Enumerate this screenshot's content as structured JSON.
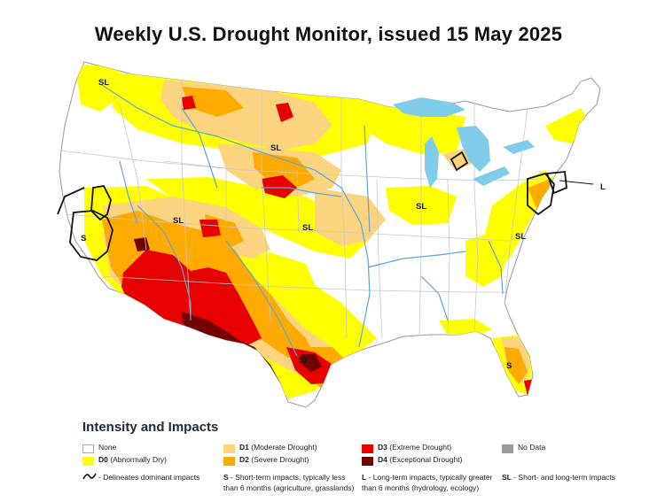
{
  "title": "Weekly U.S. Drought Monitor, issued 15 May 2025",
  "colors": {
    "none": "#ffffff",
    "d0": "#ffff00",
    "d1": "#fcd37f",
    "d2": "#ffaa00",
    "d3": "#e60000",
    "d4": "#730000",
    "no_data": "#999999",
    "water": "#7fcdea",
    "boundary": "#c8c8c8"
  },
  "map_labels": {
    "pnw": "SL",
    "north_plains": "SL",
    "california": "S",
    "southwest": "SL",
    "central_plains": "SL",
    "midwest": "SL",
    "mid_atlantic": "SL",
    "northeast": "L",
    "texas": "SL",
    "florida": "S"
  },
  "legend": {
    "heading": "Intensity and Impacts",
    "none": "None",
    "d0": {
      "code": "D0",
      "text": " (Abnormally Dry)"
    },
    "d1": {
      "code": "D1",
      "text": " (Moderate Drought)"
    },
    "d2": {
      "code": "D2",
      "text": " (Severe Drought)"
    },
    "d3": {
      "code": "D3",
      "text": " (Extreme Drought)"
    },
    "d4": {
      "code": "D4",
      "text": " (Exceptional Drought)"
    },
    "no_data": "No Data",
    "delineates": "- Delineates dominant impacts",
    "s_key": "S",
    "s_line1": " - Short-term impacts, typically less",
    "s_line2": "than 6 months (agriculture, grasslands)",
    "l_key": "L",
    "l_line1": " - Long-term impacts, typically greater",
    "l_line2": "than 6 months (hydrology, ecology)",
    "sl_key": "SL",
    "sl_line1": " - Short- and long-term impacts"
  }
}
